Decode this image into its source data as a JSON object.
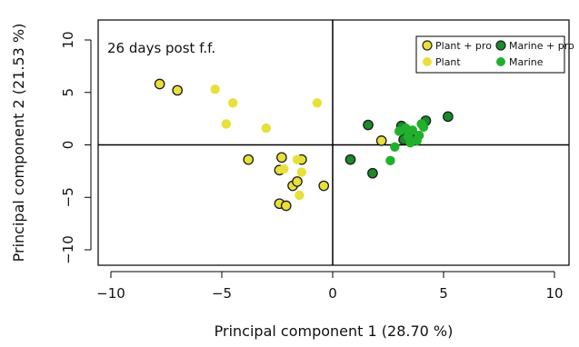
{
  "chart_data": {
    "type": "scatter",
    "title": "",
    "annotation": "26 days post f.f.",
    "xlabel": "Principal component 1 (28.70 %)",
    "ylabel": "Principal component 2 (21.53 %)",
    "xlim": [
      -10,
      10
    ],
    "ylim": [
      -10,
      10
    ],
    "xticks": [
      -10,
      -5,
      0,
      5,
      10
    ],
    "yticks": [
      -10,
      -5,
      0,
      5,
      10
    ],
    "xtick_labels": [
      "−10",
      "−5",
      "0",
      "5",
      "10"
    ],
    "ytick_labels": [
      "−10",
      "−5",
      "0",
      "5",
      "10"
    ],
    "grid": false,
    "reference_lines": [
      0,
      0
    ],
    "legend_position": "top-right",
    "series": [
      {
        "name": "Plant + pro",
        "color": "#e8e03a",
        "outlined": true,
        "points": [
          {
            "x": -7.8,
            "y": 5.8
          },
          {
            "x": -7.0,
            "y": 5.2
          },
          {
            "x": -3.8,
            "y": -1.4
          },
          {
            "x": -2.4,
            "y": -2.4
          },
          {
            "x": -2.3,
            "y": -1.2
          },
          {
            "x": -1.8,
            "y": -3.9
          },
          {
            "x": -1.6,
            "y": -3.5
          },
          {
            "x": -1.4,
            "y": -1.4
          },
          {
            "x": -2.4,
            "y": -5.6
          },
          {
            "x": -2.1,
            "y": -5.8
          },
          {
            "x": -0.4,
            "y": -3.9
          },
          {
            "x": 2.2,
            "y": 0.4
          }
        ]
      },
      {
        "name": "Plant",
        "color": "#e8e03a",
        "outlined": false,
        "points": [
          {
            "x": -5.3,
            "y": 5.3
          },
          {
            "x": -4.5,
            "y": 4.0
          },
          {
            "x": -4.8,
            "y": 2.0
          },
          {
            "x": -3.0,
            "y": 1.6
          },
          {
            "x": -0.7,
            "y": 4.0
          },
          {
            "x": -2.2,
            "y": -2.3
          },
          {
            "x": -1.6,
            "y": -1.4
          },
          {
            "x": -1.4,
            "y": -2.6
          },
          {
            "x": -1.5,
            "y": -4.8
          }
        ]
      },
      {
        "name": "Marine + pro",
        "color": "#1a8a2a",
        "outlined": true,
        "points": [
          {
            "x": 0.8,
            "y": -1.4
          },
          {
            "x": 1.6,
            "y": 1.9
          },
          {
            "x": 1.8,
            "y": -2.7
          },
          {
            "x": 3.1,
            "y": 1.8
          },
          {
            "x": 3.3,
            "y": 1.2
          },
          {
            "x": 3.2,
            "y": 0.5
          },
          {
            "x": 3.6,
            "y": 0.5
          },
          {
            "x": 4.2,
            "y": 2.3
          },
          {
            "x": 5.2,
            "y": 2.7
          }
        ]
      },
      {
        "name": "Marine",
        "color": "#22b02c",
        "outlined": false,
        "points": [
          {
            "x": 2.6,
            "y": -1.5
          },
          {
            "x": 2.8,
            "y": -0.2
          },
          {
            "x": 3.0,
            "y": 1.3
          },
          {
            "x": 3.4,
            "y": 0.8
          },
          {
            "x": 3.6,
            "y": 1.4
          },
          {
            "x": 3.5,
            "y": 0.2
          },
          {
            "x": 3.9,
            "y": 0.9
          },
          {
            "x": 4.0,
            "y": 2.0
          },
          {
            "x": 4.1,
            "y": 1.7
          },
          {
            "x": 3.8,
            "y": 0.4
          },
          {
            "x": 3.3,
            "y": 1.6
          }
        ]
      }
    ]
  }
}
